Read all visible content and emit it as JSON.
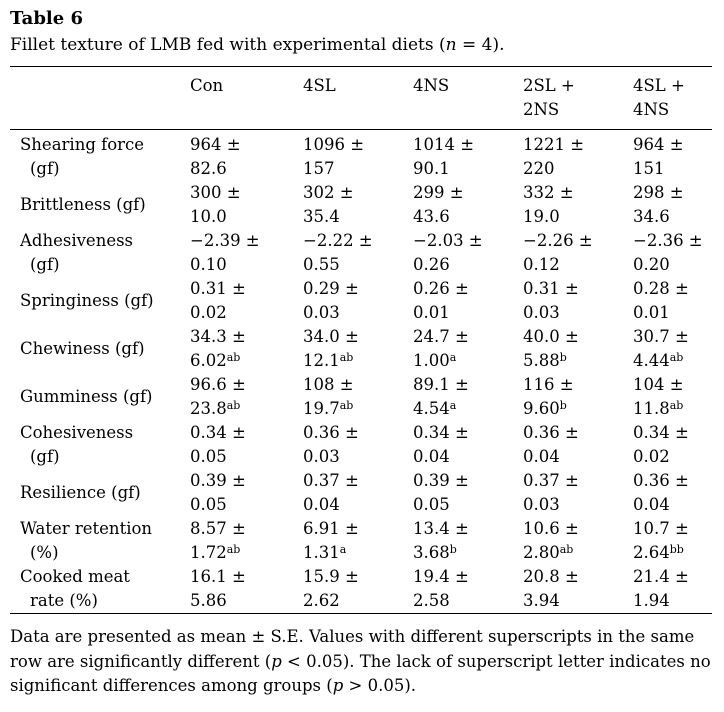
{
  "table": {
    "number": "Table 6",
    "caption": {
      "pre": "Fillet texture of LMB fed with experimental diets (",
      "italic_var": "n",
      "post": " = 4)."
    },
    "pm_symbol": "±",
    "columns": [
      {
        "line1": "Con",
        "line2": ""
      },
      {
        "line1": "4SL",
        "line2": ""
      },
      {
        "line1": "4NS",
        "line2": ""
      },
      {
        "line1": "2SL +",
        "line2": "2NS"
      },
      {
        "line1": "4SL +",
        "line2": "4NS"
      }
    ],
    "rows": [
      {
        "label_line1": "Shearing force",
        "label_line2": "(gf)",
        "cells": [
          {
            "mean": "964",
            "se": "82.6",
            "sup": ""
          },
          {
            "mean": "1096",
            "se": "157",
            "sup": ""
          },
          {
            "mean": "1014",
            "se": "90.1",
            "sup": ""
          },
          {
            "mean": "1221",
            "se": "220",
            "sup": ""
          },
          {
            "mean": "964",
            "se": "151",
            "sup": ""
          }
        ]
      },
      {
        "label_line1": "Brittleness (gf)",
        "label_line2": "",
        "cells": [
          {
            "mean": "300",
            "se": "10.0",
            "sup": ""
          },
          {
            "mean": "302",
            "se": "35.4",
            "sup": ""
          },
          {
            "mean": "299",
            "se": "43.6",
            "sup": ""
          },
          {
            "mean": "332",
            "se": "19.0",
            "sup": ""
          },
          {
            "mean": "298",
            "se": "34.6",
            "sup": ""
          }
        ]
      },
      {
        "label_line1": "Adhesiveness",
        "label_line2": "(gf)",
        "cells": [
          {
            "mean": "−2.39",
            "se": "0.10",
            "sup": ""
          },
          {
            "mean": "−2.22",
            "se": "0.55",
            "sup": ""
          },
          {
            "mean": "−2.03",
            "se": "0.26",
            "sup": ""
          },
          {
            "mean": "−2.26",
            "se": "0.12",
            "sup": ""
          },
          {
            "mean": "−2.36",
            "se": "0.20",
            "sup": ""
          }
        ]
      },
      {
        "label_line1": "Springiness (gf)",
        "label_line2": "",
        "cells": [
          {
            "mean": "0.31",
            "se": "0.02",
            "sup": ""
          },
          {
            "mean": "0.29",
            "se": "0.03",
            "sup": ""
          },
          {
            "mean": "0.26",
            "se": "0.01",
            "sup": ""
          },
          {
            "mean": "0.31",
            "se": "0.03",
            "sup": ""
          },
          {
            "mean": "0.28",
            "se": "0.01",
            "sup": ""
          }
        ]
      },
      {
        "label_line1": "Chewiness (gf)",
        "label_line2": "",
        "cells": [
          {
            "mean": "34.3",
            "se": "6.02",
            "sup": "ab"
          },
          {
            "mean": "34.0",
            "se": "12.1",
            "sup": "ab"
          },
          {
            "mean": "24.7",
            "se": "1.00",
            "sup": "a"
          },
          {
            "mean": "40.0",
            "se": "5.88",
            "sup": "b"
          },
          {
            "mean": "30.7",
            "se": "4.44",
            "sup": "ab"
          }
        ]
      },
      {
        "label_line1": "Gumminess (gf)",
        "label_line2": "",
        "cells": [
          {
            "mean": "96.6",
            "se": "23.8",
            "sup": "ab"
          },
          {
            "mean": "108",
            "se": "19.7",
            "sup": "ab"
          },
          {
            "mean": "89.1",
            "se": "4.54",
            "sup": "a"
          },
          {
            "mean": "116",
            "se": "9.60",
            "sup": "b"
          },
          {
            "mean": "104",
            "se": "11.8",
            "sup": "ab"
          }
        ]
      },
      {
        "label_line1": "Cohesiveness",
        "label_line2": "(gf)",
        "cells": [
          {
            "mean": "0.34",
            "se": "0.05",
            "sup": ""
          },
          {
            "mean": "0.36",
            "se": "0.03",
            "sup": ""
          },
          {
            "mean": "0.34",
            "se": "0.04",
            "sup": ""
          },
          {
            "mean": "0.36",
            "se": "0.04",
            "sup": ""
          },
          {
            "mean": "0.34",
            "se": "0.02",
            "sup": ""
          }
        ]
      },
      {
        "label_line1": "Resilience (gf)",
        "label_line2": "",
        "cells": [
          {
            "mean": "0.39",
            "se": "0.05",
            "sup": ""
          },
          {
            "mean": "0.37",
            "se": "0.04",
            "sup": ""
          },
          {
            "mean": "0.39",
            "se": "0.05",
            "sup": ""
          },
          {
            "mean": "0.37",
            "se": "0.03",
            "sup": ""
          },
          {
            "mean": "0.36",
            "se": "0.04",
            "sup": ""
          }
        ]
      },
      {
        "label_line1": "Water retention",
        "label_line2": "(%)",
        "cells": [
          {
            "mean": "8.57",
            "se": "1.72",
            "sup": "ab"
          },
          {
            "mean": "6.91",
            "se": "1.31",
            "sup": "a"
          },
          {
            "mean": "13.4",
            "se": "3.68",
            "sup": "b"
          },
          {
            "mean": "10.6",
            "se": "2.80",
            "sup": "ab"
          },
          {
            "mean": "10.7",
            "se": "2.64",
            "sup": "bb"
          }
        ]
      },
      {
        "label_line1": "Cooked meat",
        "label_line2": "rate (%)",
        "cells": [
          {
            "mean": "16.1",
            "se": "5.86",
            "sup": ""
          },
          {
            "mean": "15.9",
            "se": "2.62",
            "sup": ""
          },
          {
            "mean": "19.4",
            "se": "2.58",
            "sup": ""
          },
          {
            "mean": "20.8",
            "se": "3.94",
            "sup": ""
          },
          {
            "mean": "21.4",
            "se": "1.94",
            "sup": ""
          }
        ]
      }
    ],
    "footnote": {
      "p1": "Data are presented as mean ± S.E. Values with different superscripts in the same row are significantly different (",
      "it1": "p",
      "p2": " < 0.05). The lack of superscript letter indicates no significant differences among groups (",
      "it2": "p",
      "p3": " > 0.05)."
    }
  }
}
